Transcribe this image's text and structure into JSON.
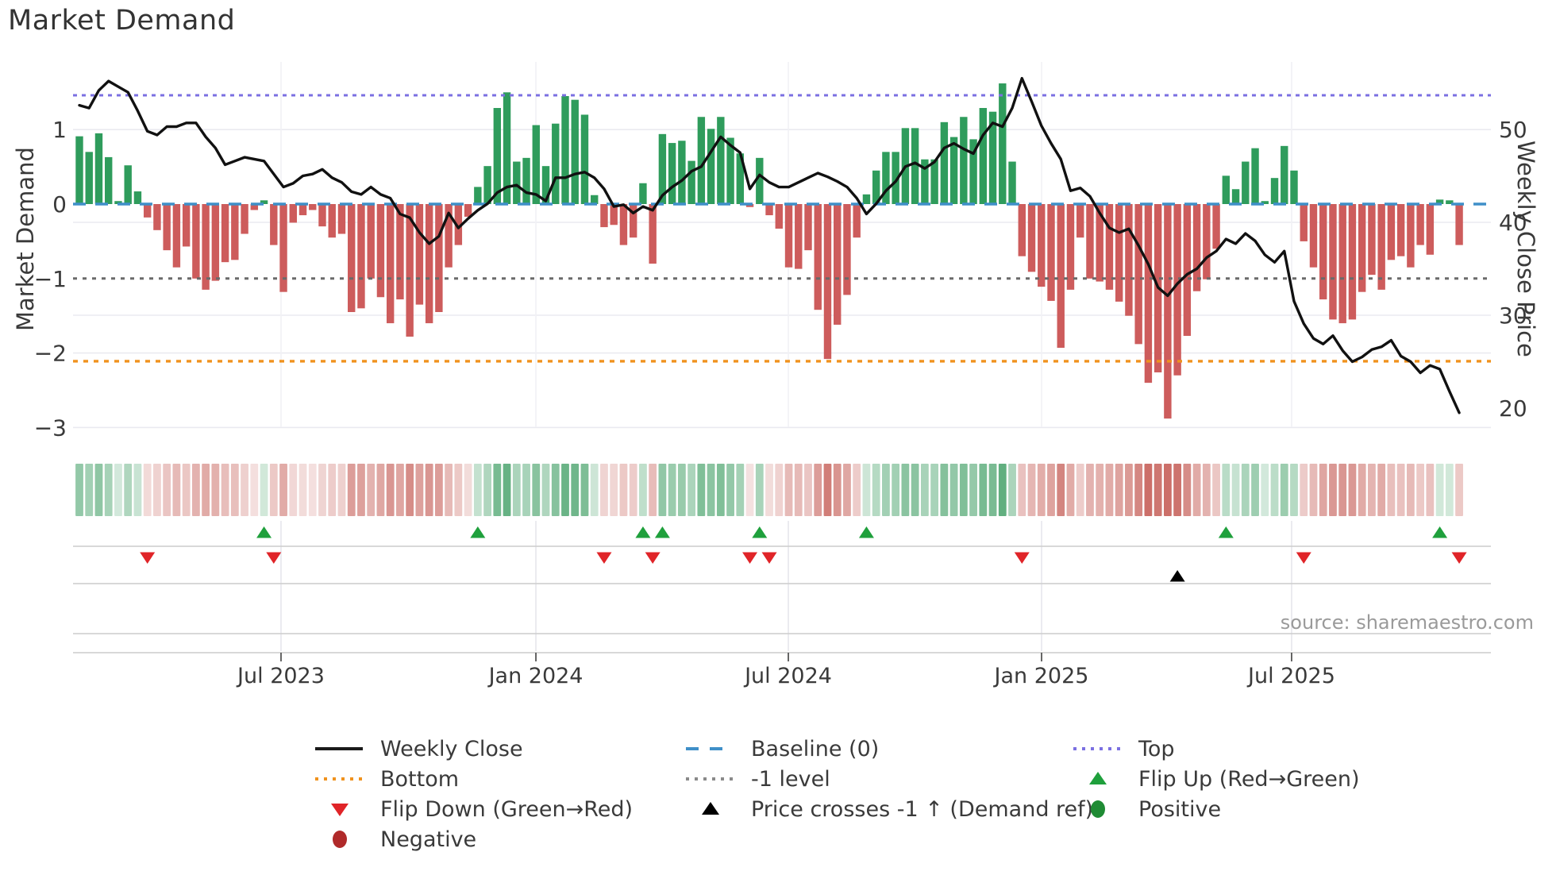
{
  "title": "Market Demand",
  "source": "source: sharemaestro.com",
  "axes": {
    "y_left_label": "Market Demand",
    "y_right_label": "Weekly Close Price",
    "y_left_ticks": [
      "1",
      "0",
      "−1",
      "−2",
      "−3"
    ],
    "y_left_tick_values": [
      1,
      0,
      -1,
      -2,
      -3
    ],
    "y_right_ticks": [
      "50",
      "40",
      "30",
      "20"
    ],
    "y_right_tick_values": [
      50,
      40,
      30,
      20
    ],
    "x_tick_labels": [
      "Jul 2023",
      "Jan 2024",
      "Jul 2024",
      "Jan 2025",
      "Jul 2025"
    ],
    "x_tick_week_positions": [
      20.75,
      46.98,
      72.96,
      99.02,
      124.75
    ]
  },
  "colors": {
    "bar_positive": "#2f9c5c",
    "bar_negative": "#cd5c5c",
    "price_line": "#111111",
    "baseline": "#3f8fc8",
    "top_line": "#7b70e2",
    "minus_one_line": "#6a6a6a",
    "bottom_line": "#f0921e",
    "flip_up_marker": "#1fa03c",
    "flip_down_marker": "#e02428",
    "price_cross_marker": "#000000",
    "positive_dot": "#1f8b34",
    "negative_dot": "#b02a2a",
    "grid": "#eaeaf0",
    "panel_line": "#cccccc",
    "tick_text": "#3a3a3a",
    "heat_green": [
      44,
      148,
      84
    ],
    "heat_red": [
      188,
      68,
      60
    ]
  },
  "chart_data": {
    "type": "bar+line",
    "x_unit": "week",
    "n_weeks": 143,
    "grid": true,
    "legend_position": "bottom",
    "left_axis": {
      "label": "Market Demand",
      "ticks": [
        1,
        0,
        -1,
        -2,
        -3
      ],
      "range": [
        -3.1,
        1.9
      ]
    },
    "right_axis": {
      "label": "Weekly Close Price",
      "ticks": [
        50,
        40,
        30,
        20
      ],
      "range": [
        18,
        58
      ]
    },
    "reference_lines": {
      "top": 1.46,
      "baseline": 0,
      "minus_one_level": -1,
      "bottom": -2.11
    },
    "series": [
      {
        "name": "Market Demand",
        "type": "bar",
        "axis": "left",
        "values": [
          0.91,
          0.7,
          0.95,
          0.63,
          0.04,
          0.52,
          0.17,
          -0.18,
          -0.35,
          -0.62,
          -0.85,
          -0.57,
          -1.0,
          -1.15,
          -1.03,
          -0.78,
          -0.75,
          -0.4,
          -0.08,
          0.05,
          -0.55,
          -1.18,
          -0.25,
          -0.15,
          -0.08,
          -0.3,
          -0.45,
          -0.4,
          -1.45,
          -1.4,
          -1.0,
          -1.25,
          -1.6,
          -1.28,
          -1.78,
          -1.35,
          -1.6,
          -1.45,
          -0.85,
          -0.55,
          -0.17,
          0.23,
          0.51,
          1.29,
          1.5,
          0.57,
          0.62,
          1.06,
          0.51,
          1.08,
          1.45,
          1.4,
          1.2,
          0.12,
          -0.31,
          -0.28,
          -0.55,
          -0.45,
          0.28,
          -0.8,
          0.94,
          0.82,
          0.85,
          0.58,
          1.17,
          1.01,
          1.17,
          0.89,
          0.68,
          -0.04,
          0.62,
          -0.15,
          -0.33,
          -0.85,
          -0.87,
          -0.62,
          -1.42,
          -2.08,
          -1.62,
          -1.22,
          -0.45,
          0.13,
          0.45,
          0.7,
          0.7,
          1.02,
          1.02,
          0.6,
          0.6,
          1.1,
          0.9,
          1.17,
          0.87,
          1.29,
          1.24,
          1.62,
          0.57,
          -0.7,
          -0.91,
          -1.11,
          -1.3,
          -1.93,
          -1.15,
          -0.45,
          -1.0,
          -1.04,
          -1.15,
          -1.31,
          -1.5,
          -1.88,
          -2.4,
          -2.26,
          -2.88,
          -2.3,
          -1.77,
          -1.17,
          -1.01,
          -0.6,
          0.38,
          0.2,
          0.57,
          0.75,
          0.04,
          0.35,
          0.78,
          0.45,
          -0.5,
          -0.85,
          -1.28,
          -1.55,
          -1.6,
          -1.55,
          -1.18,
          -0.95,
          -1.15,
          -0.75,
          -0.7,
          -0.85,
          -0.55,
          -0.68,
          0.06,
          0.05,
          -0.55
        ]
      },
      {
        "name": "Weekly Close",
        "type": "line",
        "axis": "right",
        "values": [
          52.6,
          52.3,
          54.2,
          55.2,
          54.6,
          54.0,
          52.0,
          49.8,
          49.4,
          50.3,
          50.3,
          50.7,
          50.7,
          49.2,
          48.0,
          46.2,
          46.6,
          47.0,
          46.8,
          46.6,
          45.2,
          43.8,
          44.2,
          45.0,
          45.2,
          45.7,
          44.8,
          44.3,
          43.3,
          43.0,
          43.8,
          43.0,
          42.6,
          40.9,
          40.5,
          38.9,
          37.7,
          38.5,
          41.0,
          39.4,
          40.4,
          41.3,
          42.0,
          43.2,
          43.8,
          44.0,
          43.2,
          43.0,
          42.3,
          44.8,
          44.8,
          45.2,
          45.4,
          44.8,
          43.6,
          41.7,
          41.9,
          41.0,
          41.7,
          41.3,
          42.9,
          43.8,
          44.5,
          45.5,
          46.0,
          47.6,
          49.2,
          48.3,
          47.5,
          43.6,
          45.1,
          44.3,
          43.8,
          43.8,
          44.3,
          44.8,
          45.3,
          44.9,
          44.4,
          43.8,
          42.6,
          40.9,
          42.0,
          43.4,
          44.4,
          46.0,
          46.4,
          45.8,
          46.5,
          48.0,
          48.5,
          47.9,
          47.4,
          49.4,
          50.7,
          50.3,
          52.3,
          55.5,
          53.0,
          50.4,
          48.5,
          46.8,
          43.4,
          43.7,
          42.8,
          41.0,
          39.4,
          38.9,
          39.3,
          37.5,
          35.5,
          33.0,
          32.1,
          33.4,
          34.4,
          35.0,
          36.2,
          36.9,
          38.2,
          37.7,
          38.8,
          38.0,
          36.5,
          35.7,
          36.9,
          31.5,
          29.1,
          27.5,
          26.9,
          27.8,
          26.2,
          25.0,
          25.5,
          26.3,
          26.6,
          27.3,
          25.6,
          25.0,
          23.8,
          24.6,
          24.2,
          21.8,
          19.5
        ]
      }
    ],
    "markers": {
      "flip_up_weeks": [
        19,
        41,
        58,
        60,
        70,
        81,
        118,
        140
      ],
      "flip_down_weeks": [
        7,
        20,
        54,
        59,
        69,
        71,
        97,
        126,
        142
      ],
      "price_cross_up_weeks": [
        113
      ]
    },
    "heatmap_strip": "weekly demand values rendered as green(positive)/red(negative) intensity cells"
  },
  "legend": {
    "columns": [
      [
        {
          "swatch": "line-solid",
          "color": "#1a1a1a",
          "label": "Weekly Close"
        },
        {
          "swatch": "line-dotted",
          "color": "#f0921e",
          "label": "Bottom"
        },
        {
          "swatch": "triangle-down",
          "color": "#e02428",
          "label": "Flip Down (Green→Red)"
        },
        {
          "swatch": "circle",
          "color": "#b02a2a",
          "label": "Negative"
        }
      ],
      [
        {
          "swatch": "line-dashed",
          "color": "#3f8fc8",
          "label": "Baseline (0)"
        },
        {
          "swatch": "line-dotted",
          "color": "#8a8a8a",
          "label": "-1 level"
        },
        {
          "swatch": "triangle-up",
          "color": "#000000",
          "label": "Price crosses -1 ↑ (Demand ref)"
        }
      ],
      [
        {
          "swatch": "line-dotted",
          "color": "#7b70e2",
          "label": "Top"
        },
        {
          "swatch": "triangle-up",
          "color": "#1fa03c",
          "label": "Flip Up (Red→Green)"
        },
        {
          "swatch": "circle",
          "color": "#1f8b34",
          "label": "Positive"
        }
      ]
    ]
  }
}
